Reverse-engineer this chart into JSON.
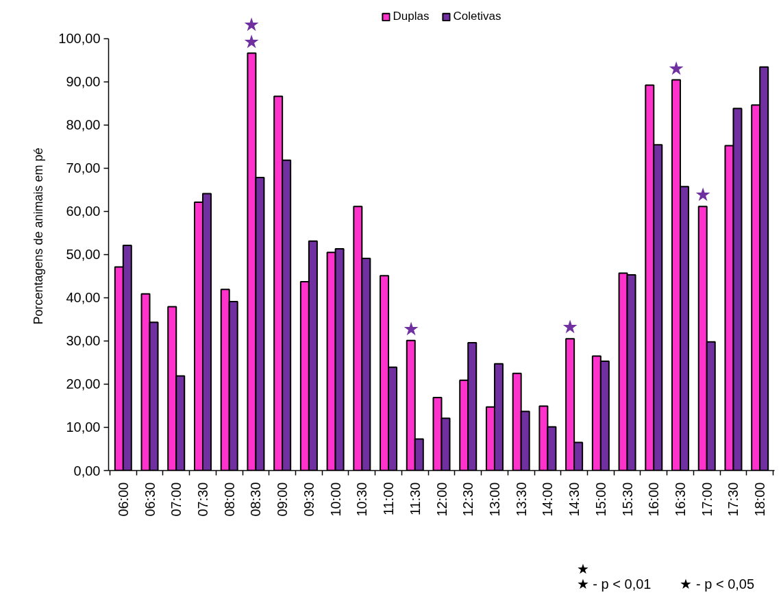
{
  "chart_data": {
    "type": "bar",
    "ylabel": "Porcentagens de animais em pé",
    "categories": [
      "06:00",
      "06:30",
      "07:00",
      "07:30",
      "08:00",
      "08:30",
      "09:00",
      "09:30",
      "10:00",
      "10:30",
      "11:00",
      "11:30",
      "12:00",
      "12:30",
      "13:00",
      "13:30",
      "14:00",
      "14:30",
      "15:00",
      "15:30",
      "16:00",
      "16:30",
      "17:00",
      "17:30",
      "18:00"
    ],
    "series": [
      {
        "name": "Duplas",
        "color": "#ff33cc",
        "values": [
          47.1,
          40.9,
          37.9,
          62.1,
          41.9,
          96.6,
          86.6,
          43.7,
          50.5,
          61.1,
          45.1,
          30.1,
          16.9,
          20.9,
          14.7,
          22.5,
          14.9,
          30.5,
          26.5,
          45.7,
          89.2,
          90.4,
          61.1,
          75.2,
          84.6
        ]
      },
      {
        "name": "Coletivas",
        "color": "#7030a0",
        "values": [
          52.1,
          34.3,
          21.9,
          64.1,
          39.1,
          67.8,
          71.8,
          53.1,
          51.3,
          49.1,
          23.9,
          7.3,
          12.1,
          29.6,
          24.7,
          13.7,
          10.1,
          6.5,
          25.3,
          45.3,
          75.4,
          65.7,
          29.8,
          83.8,
          93.4
        ]
      }
    ],
    "ylim": [
      0,
      100
    ],
    "yticks": [
      {
        "value": 0,
        "label": "0,00"
      },
      {
        "value": 10,
        "label": "10,00"
      },
      {
        "value": 20,
        "label": "20,00"
      },
      {
        "value": 30,
        "label": "30,00"
      },
      {
        "value": 40,
        "label": "40,00"
      },
      {
        "value": 50,
        "label": "50,00"
      },
      {
        "value": 60,
        "label": "60,00"
      },
      {
        "value": 70,
        "label": "70,00"
      },
      {
        "value": 80,
        "label": "80,00"
      },
      {
        "value": 90,
        "label": "90,00"
      },
      {
        "value": 100,
        "label": "100,00"
      }
    ],
    "legend": "top",
    "annotations": [
      {
        "text": "★",
        "x": "08:30",
        "y": 96.6
      },
      {
        "text": "★",
        "x": "08:30",
        "y": 96.6
      },
      {
        "text": "★",
        "x": "11:30",
        "y": 30.1
      },
      {
        "text": "★",
        "x": "14:30",
        "y": 30.5
      },
      {
        "text": "★",
        "x": "16:30",
        "y": 90.4
      },
      {
        "text": "★",
        "x": "17:00",
        "y": 61.1
      },
      "★\n★ - p < 0,01",
      "★ - p < 0,05"
    ]
  }
}
